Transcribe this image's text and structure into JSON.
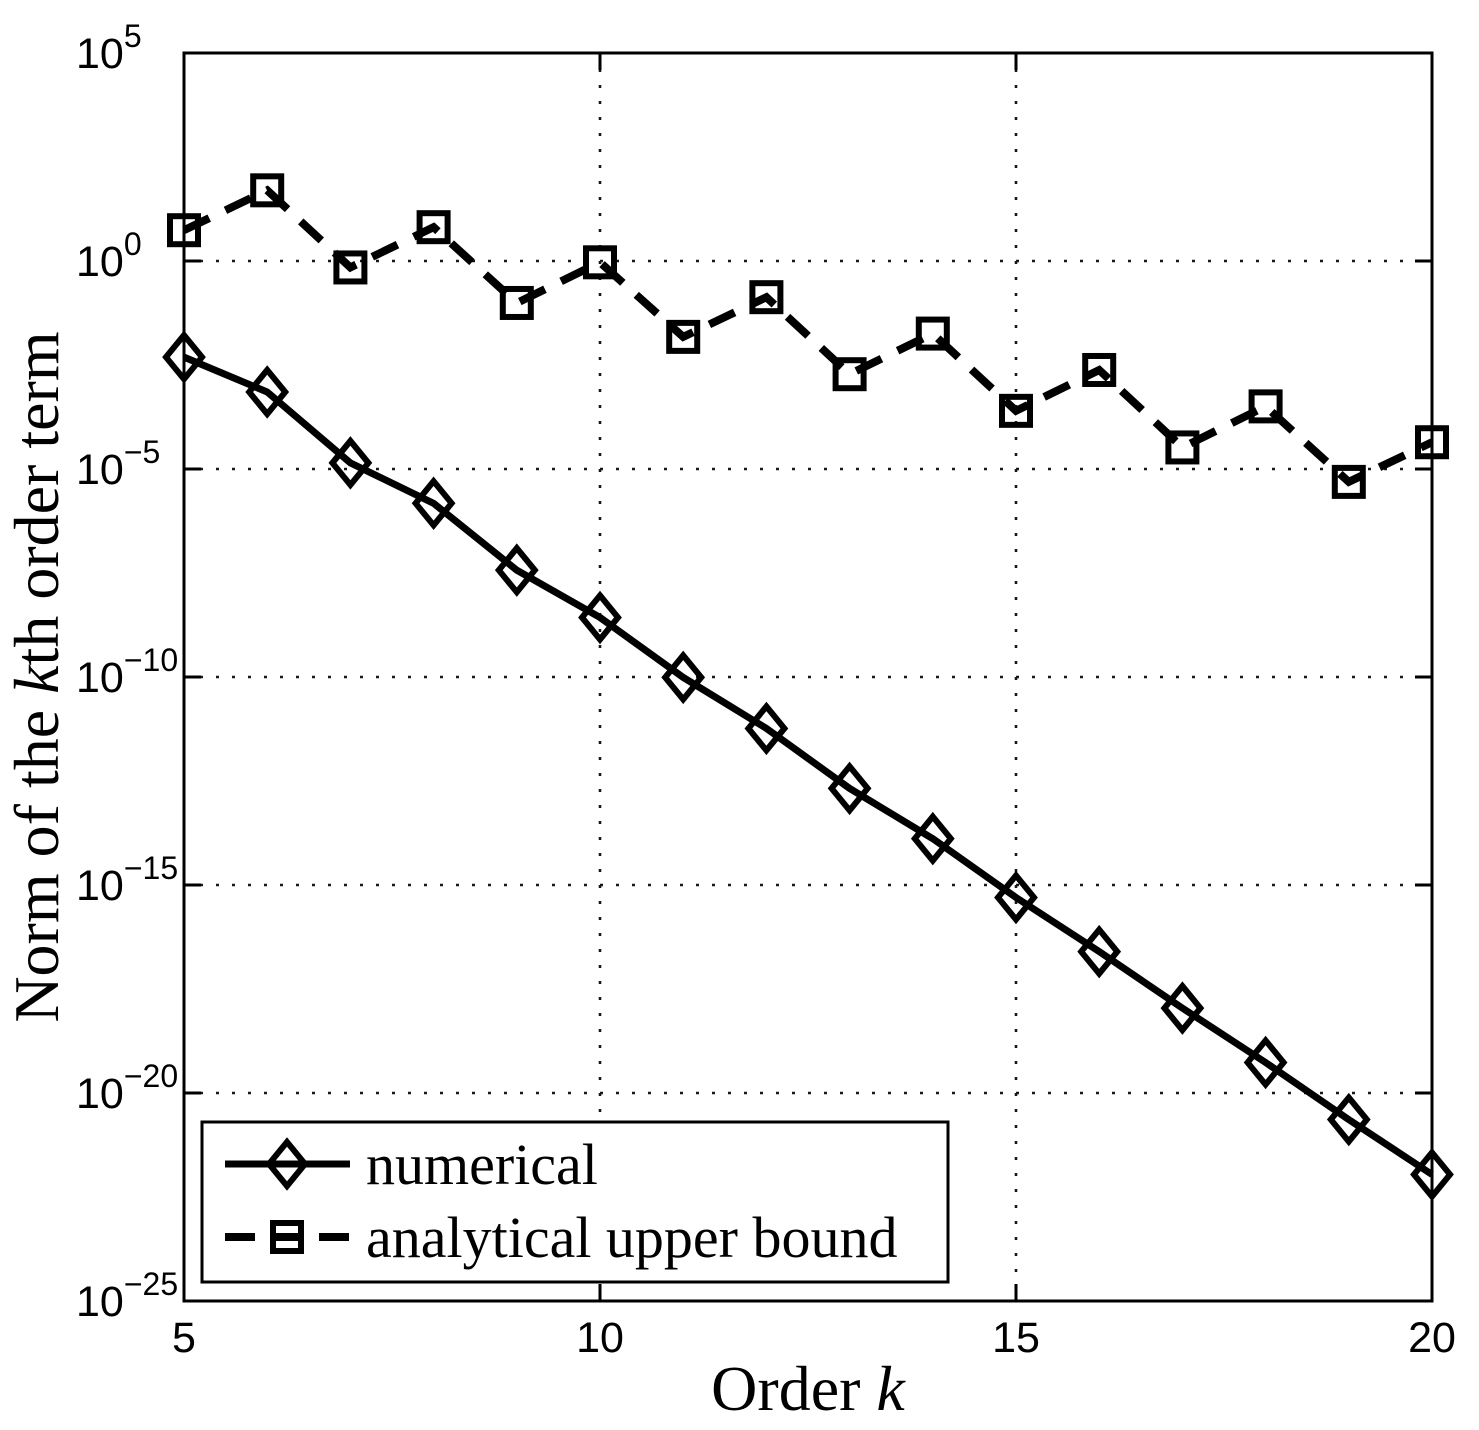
{
  "figure": {
    "background": "#ffffff",
    "foreground": "#000000"
  },
  "chart_data": {
    "type": "line",
    "title": "",
    "xlabel": {
      "prefix": "Order ",
      "var": "k"
    },
    "ylabel": {
      "prefix": "Norm of the ",
      "var": "k",
      "suffix": "th order term"
    },
    "xlim": [
      5,
      20
    ],
    "ylim_exponents": [
      -25,
      5
    ],
    "x_ticks": [
      5,
      10,
      15,
      20
    ],
    "y_tick_exponents": [
      5,
      0,
      -5,
      -10,
      -15,
      -20,
      -25
    ],
    "x_gridlines": [
      10,
      15
    ],
    "y_gridline_exponents": [
      0,
      -5,
      -10,
      -15,
      -20
    ],
    "grid": "dotted",
    "x": [
      5,
      6,
      7,
      8,
      9,
      10,
      11,
      12,
      13,
      14,
      15,
      16,
      17,
      18,
      19,
      20
    ],
    "series": [
      {
        "name": "numerical",
        "line": "solid",
        "marker": "diamond",
        "values": [
          0.0049,
          0.00071,
          1.4e-05,
          1.5e-06,
          3.7e-08,
          2.7e-09,
          9.8e-11,
          5.8e-12,
          2.1e-13,
          1.3e-14,
          5e-16,
          2.5e-17,
          1.1e-18,
          5.4e-20,
          2.3e-21,
          1.1e-22
        ]
      },
      {
        "name": "analytical upper bound",
        "line": "dashed",
        "marker": "square",
        "values": [
          5.5,
          50,
          0.7,
          6.5,
          0.098,
          0.93,
          0.015,
          0.135,
          0.0019,
          0.018,
          0.00025,
          0.0024,
          3.3e-05,
          0.00032,
          4.9e-06,
          4.4e-05
        ]
      }
    ],
    "legend": {
      "position": "bottom-left",
      "entries": [
        "numerical",
        "analytical upper bound"
      ]
    },
    "colors": {
      "line": "#000000",
      "grid": "#000000",
      "background": "#ffffff"
    }
  }
}
